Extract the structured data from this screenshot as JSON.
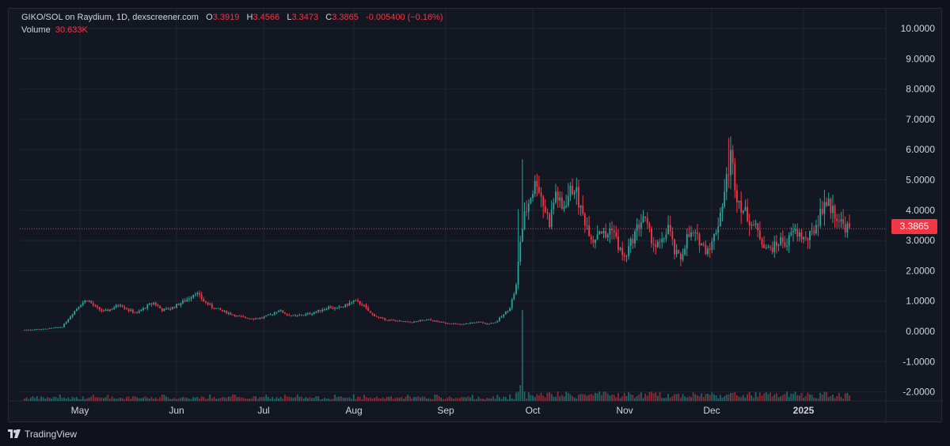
{
  "header": {
    "symbol": "GIKO/SOL on Raydium, 1D, dexscreener.com",
    "open_label": "O",
    "open": "3.3919",
    "high_label": "H",
    "high": "3.4566",
    "low_label": "L",
    "low": "3.3473",
    "close_label": "C",
    "close": "3.3865",
    "change": "-0.005400 (−0.16%)",
    "volume_label": "Volume",
    "volume": "30.633K"
  },
  "price_badge": "3.3865",
  "footer": {
    "brand": "TradingView",
    "icon": "tradingview-logo-icon"
  },
  "colors": {
    "up": "#26a69a",
    "down": "#f23645",
    "background": "#131722",
    "grid": "#1f2430",
    "text": "#d1d4dc"
  },
  "chart_data": {
    "type": "candlestick",
    "y_ticks": [
      "10.0000",
      "9.0000",
      "8.0000",
      "7.0000",
      "6.0000",
      "5.0000",
      "4.0000",
      "3.0000",
      "2.0000",
      "1.0000",
      "0.0000",
      "-1.0000",
      "-2.0000"
    ],
    "x_ticks": [
      "May",
      "Jun",
      "Jul",
      "Aug",
      "Sep",
      "Oct",
      "Nov",
      "Dec",
      "2025"
    ],
    "ylim": [
      -2.2,
      10.5
    ],
    "last_price": 3.3865,
    "grid": true,
    "price_anchors": [
      [
        0,
        0.05
      ],
      [
        10,
        0.08
      ],
      [
        18,
        0.15
      ],
      [
        22,
        0.5
      ],
      [
        26,
        0.85
      ],
      [
        30,
        1.05
      ],
      [
        34,
        0.8
      ],
      [
        38,
        0.65
      ],
      [
        42,
        0.75
      ],
      [
        46,
        0.9
      ],
      [
        50,
        0.7
      ],
      [
        54,
        0.6
      ],
      [
        58,
        0.8
      ],
      [
        62,
        0.95
      ],
      [
        66,
        0.7
      ],
      [
        70,
        0.75
      ],
      [
        74,
        0.9
      ],
      [
        78,
        1.05
      ],
      [
        82,
        1.3
      ],
      [
        86,
        1.0
      ],
      [
        90,
        0.8
      ],
      [
        94,
        0.7
      ],
      [
        98,
        0.6
      ],
      [
        102,
        0.5
      ],
      [
        106,
        0.45
      ],
      [
        110,
        0.42
      ],
      [
        114,
        0.45
      ],
      [
        118,
        0.55
      ],
      [
        122,
        0.7
      ],
      [
        126,
        0.55
      ],
      [
        130,
        0.5
      ],
      [
        134,
        0.55
      ],
      [
        138,
        0.6
      ],
      [
        142,
        0.7
      ],
      [
        146,
        0.8
      ],
      [
        150,
        0.75
      ],
      [
        154,
        0.85
      ],
      [
        158,
        1.0
      ],
      [
        162,
        0.9
      ],
      [
        166,
        0.6
      ],
      [
        170,
        0.45
      ],
      [
        174,
        0.38
      ],
      [
        178,
        0.35
      ],
      [
        182,
        0.32
      ],
      [
        186,
        0.3
      ],
      [
        190,
        0.35
      ],
      [
        194,
        0.38
      ],
      [
        198,
        0.32
      ],
      [
        202,
        0.28
      ],
      [
        206,
        0.25
      ],
      [
        210,
        0.22
      ],
      [
        214,
        0.28
      ],
      [
        218,
        0.3
      ],
      [
        222,
        0.25
      ],
      [
        226,
        0.3
      ],
      [
        230,
        0.55
      ],
      [
        233,
        0.8
      ],
      [
        236,
        1.5
      ],
      [
        238,
        3.0
      ],
      [
        240,
        3.8
      ],
      [
        243,
        4.5
      ],
      [
        246,
        5.0
      ],
      [
        249,
        4.2
      ],
      [
        252,
        3.6
      ],
      [
        255,
        4.6
      ],
      [
        258,
        4.0
      ],
      [
        261,
        4.5
      ],
      [
        264,
        4.8
      ],
      [
        267,
        4.0
      ],
      [
        270,
        3.5
      ],
      [
        273,
        3.0
      ],
      [
        276,
        3.4
      ],
      [
        279,
        3.1
      ],
      [
        282,
        3.5
      ],
      [
        285,
        2.8
      ],
      [
        288,
        2.4
      ],
      [
        291,
        2.9
      ],
      [
        294,
        3.4
      ],
      [
        297,
        3.8
      ],
      [
        300,
        3.2
      ],
      [
        303,
        2.8
      ],
      [
        306,
        2.9
      ],
      [
        309,
        3.5
      ],
      [
        312,
        2.6
      ],
      [
        315,
        2.4
      ],
      [
        318,
        3.1
      ],
      [
        321,
        3.2
      ],
      [
        324,
        3.0
      ],
      [
        327,
        2.7
      ],
      [
        330,
        2.9
      ],
      [
        333,
        3.6
      ],
      [
        336,
        4.6
      ],
      [
        339,
        5.8
      ],
      [
        342,
        4.5
      ],
      [
        345,
        4.0
      ],
      [
        348,
        3.7
      ],
      [
        351,
        3.4
      ],
      [
        354,
        3.0
      ],
      [
        357,
        2.7
      ],
      [
        360,
        2.8
      ],
      [
        363,
        3.0
      ],
      [
        366,
        2.9
      ],
      [
        369,
        3.3
      ],
      [
        372,
        3.2
      ],
      [
        375,
        3.0
      ],
      [
        378,
        3.2
      ],
      [
        381,
        3.7
      ],
      [
        384,
        4.3
      ],
      [
        387,
        4.1
      ],
      [
        390,
        3.8
      ],
      [
        393,
        3.5
      ],
      [
        396,
        3.39
      ]
    ],
    "volume_spike_label": "Oct",
    "volume_note": "bars along bottom"
  }
}
